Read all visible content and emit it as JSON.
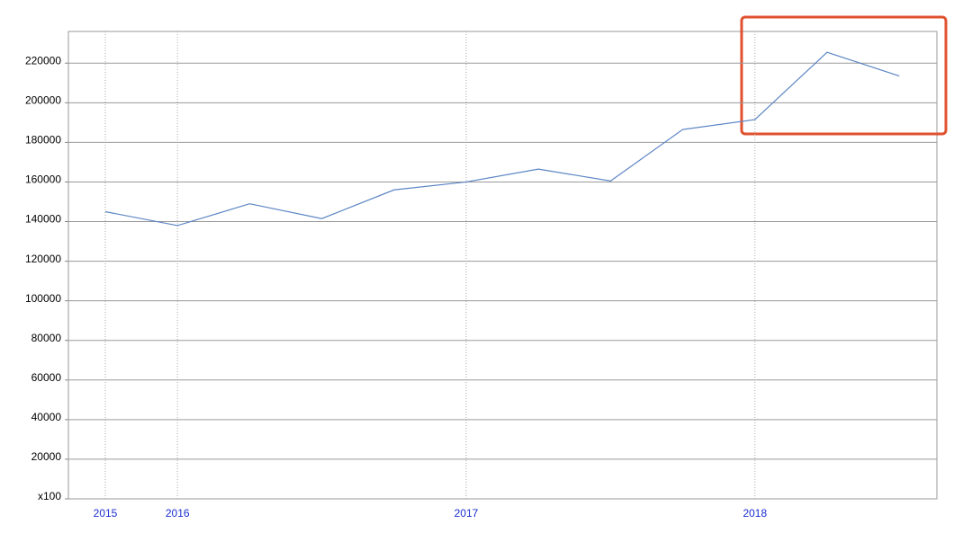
{
  "chart_data": {
    "type": "line",
    "categories": [
      "2015",
      "2016",
      null,
      null,
      null,
      "2017",
      null,
      null,
      null,
      "2018",
      null,
      null
    ],
    "series": [
      {
        "color": "#5b84c4",
        "values": [
          145000,
          138000,
          149000,
          141500,
          156000,
          160000,
          166500,
          160500,
          186500,
          191500,
          225500,
          213500
        ]
      }
    ],
    "ylim": [
      0,
      236000
    ],
    "yticks": [
      {
        "value": 0,
        "label": "x100"
      },
      20000,
      40000,
      60000,
      80000,
      100000,
      120000,
      140000,
      160000,
      180000,
      200000,
      220000
    ],
    "grid": true
  }
}
